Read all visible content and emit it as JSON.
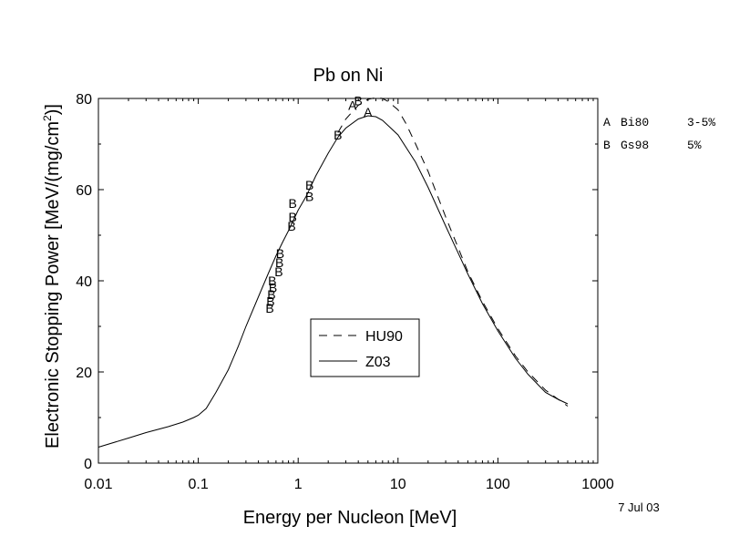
{
  "chart_data": {
    "type": "line",
    "title": "Pb on Ni",
    "xlabel": "Energy per Nucleon [MeV]",
    "ylabel": "Electronic Stopping Power [MeV/(mg/cm2)]",
    "ylabel_main": "Electronic Stopping Power [MeV/(mg/cm",
    "ylabel_sup": "2",
    "ylabel_end": ")]",
    "xscale": "log",
    "xlim": [
      0.01,
      1000
    ],
    "ylim": [
      0,
      80
    ],
    "x_ticks": [
      0.01,
      0.1,
      1,
      10,
      100,
      1000
    ],
    "x_tick_labels": [
      "0.01",
      "0.1",
      "1",
      "10",
      "100",
      "1000"
    ],
    "y_ticks": [
      0,
      20,
      40,
      60,
      80
    ],
    "y_tick_labels": [
      "0",
      "20",
      "40",
      "60",
      "80"
    ],
    "grid": false,
    "legend_position": "center",
    "series": [
      {
        "name": "HU90",
        "style": "dashed",
        "x": [
          2.5,
          3,
          4,
          5,
          6,
          7,
          8,
          10,
          12,
          15,
          20,
          30,
          50,
          70,
          100,
          150,
          200,
          300,
          500
        ],
        "y": [
          72.5,
          75.5,
          78.5,
          79.8,
          80.2,
          80,
          79.3,
          77.5,
          74.5,
          70,
          64,
          54,
          42,
          35.5,
          29.5,
          23.5,
          20,
          16,
          12.5
        ]
      },
      {
        "name": "Z03",
        "style": "solid",
        "x": [
          0.01,
          0.02,
          0.03,
          0.05,
          0.07,
          0.09,
          0.1,
          0.12,
          0.15,
          0.2,
          0.25,
          0.3,
          0.4,
          0.5,
          0.6,
          0.7,
          0.8,
          1,
          1.2,
          1.5,
          2,
          2.5,
          3,
          4,
          5,
          6,
          7,
          8,
          10,
          15,
          20,
          30,
          50,
          70,
          100,
          150,
          200,
          300,
          400,
          500
        ],
        "y": [
          3.5,
          5.5,
          6.7,
          8,
          9,
          10,
          10.5,
          12,
          15.5,
          20.5,
          25.5,
          30,
          36.5,
          41.5,
          45.5,
          48.5,
          51,
          55.5,
          58.5,
          63,
          68,
          71.5,
          73.5,
          75.5,
          76.2,
          76,
          75.2,
          74,
          72,
          66,
          60.5,
          52,
          41.5,
          35,
          29,
          23,
          19.5,
          15.5,
          14,
          13
        ]
      }
    ],
    "points": [
      {
        "label": "A",
        "x": 3.5,
        "y": 78.5
      },
      {
        "label": "A",
        "x": 5.0,
        "y": 77.0
      },
      {
        "label": "B",
        "x": 4.0,
        "y": 79.5
      },
      {
        "label": "B",
        "x": 2.5,
        "y": 72.0
      },
      {
        "label": "B",
        "x": 1.3,
        "y": 61.0
      },
      {
        "label": "B",
        "x": 1.3,
        "y": 58.5
      },
      {
        "label": "B",
        "x": 0.88,
        "y": 57.0
      },
      {
        "label": "B",
        "x": 0.88,
        "y": 54.0
      },
      {
        "label": "B",
        "x": 0.86,
        "y": 52.0
      },
      {
        "label": "B",
        "x": 0.66,
        "y": 46.0
      },
      {
        "label": "B",
        "x": 0.65,
        "y": 44.0
      },
      {
        "label": "B",
        "x": 0.64,
        "y": 42.0
      },
      {
        "label": "B",
        "x": 0.55,
        "y": 40.0
      },
      {
        "label": "B",
        "x": 0.56,
        "y": 38.5
      },
      {
        "label": "B",
        "x": 0.54,
        "y": 37.0
      },
      {
        "label": "B",
        "x": 0.53,
        "y": 35.5
      },
      {
        "label": "B",
        "x": 0.52,
        "y": 34.0
      }
    ],
    "side_legend": [
      {
        "key": "A",
        "ref": "Bi80",
        "uncertainty": "3-5%"
      },
      {
        "key": "B",
        "ref": "Gs98",
        "uncertainty": "5%"
      }
    ],
    "date": "7 Jul 03"
  }
}
